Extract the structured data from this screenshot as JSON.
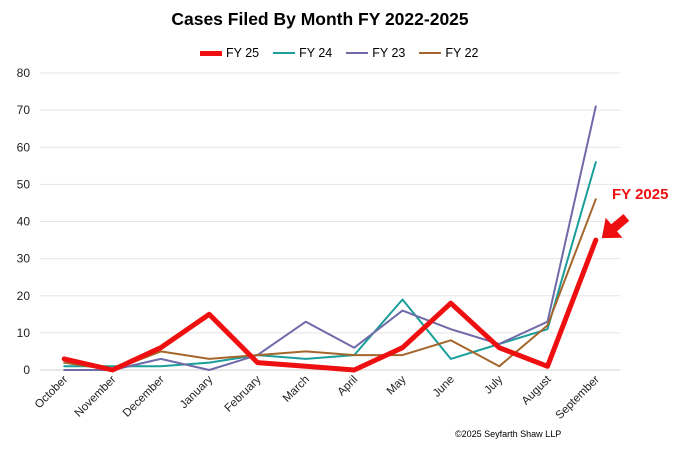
{
  "chart_data": {
    "type": "line",
    "title": "Cases Filed By Month FY 2022-2025",
    "categories": [
      "October",
      "November",
      "December",
      "January",
      "February",
      "March",
      "April",
      "May",
      "June",
      "July",
      "August",
      "September"
    ],
    "ylim": [
      0,
      80
    ],
    "yticks": [
      0,
      10,
      20,
      30,
      40,
      50,
      60,
      70,
      80
    ],
    "xlabel": "",
    "ylabel": "",
    "grid": "horizontal",
    "legend_position": "top",
    "series": [
      {
        "name": "FY 25",
        "color": "#ee1010",
        "emphasis": true,
        "values": [
          3,
          0,
          6,
          15,
          2,
          1,
          0,
          6,
          18,
          6,
          1,
          35
        ]
      },
      {
        "name": "FY 24",
        "color": "#1a9e9a",
        "emphasis": false,
        "values": [
          1,
          1,
          1,
          2,
          4,
          3,
          4,
          19,
          3,
          7,
          11,
          56
        ]
      },
      {
        "name": "FY 23",
        "color": "#6f6aa8",
        "emphasis": false,
        "values": [
          0,
          0,
          3,
          0,
          4,
          13,
          6,
          16,
          11,
          7,
          13,
          71
        ]
      },
      {
        "name": "FY 22",
        "color": "#a5662b",
        "emphasis": false,
        "values": [
          2,
          0,
          5,
          3,
          4,
          5,
          4,
          4,
          8,
          1,
          12,
          46
        ]
      }
    ],
    "annotation": {
      "text": "FY 2025",
      "color": "#ee1010"
    },
    "credit": "©2025 Seyfarth Shaw LLP"
  }
}
